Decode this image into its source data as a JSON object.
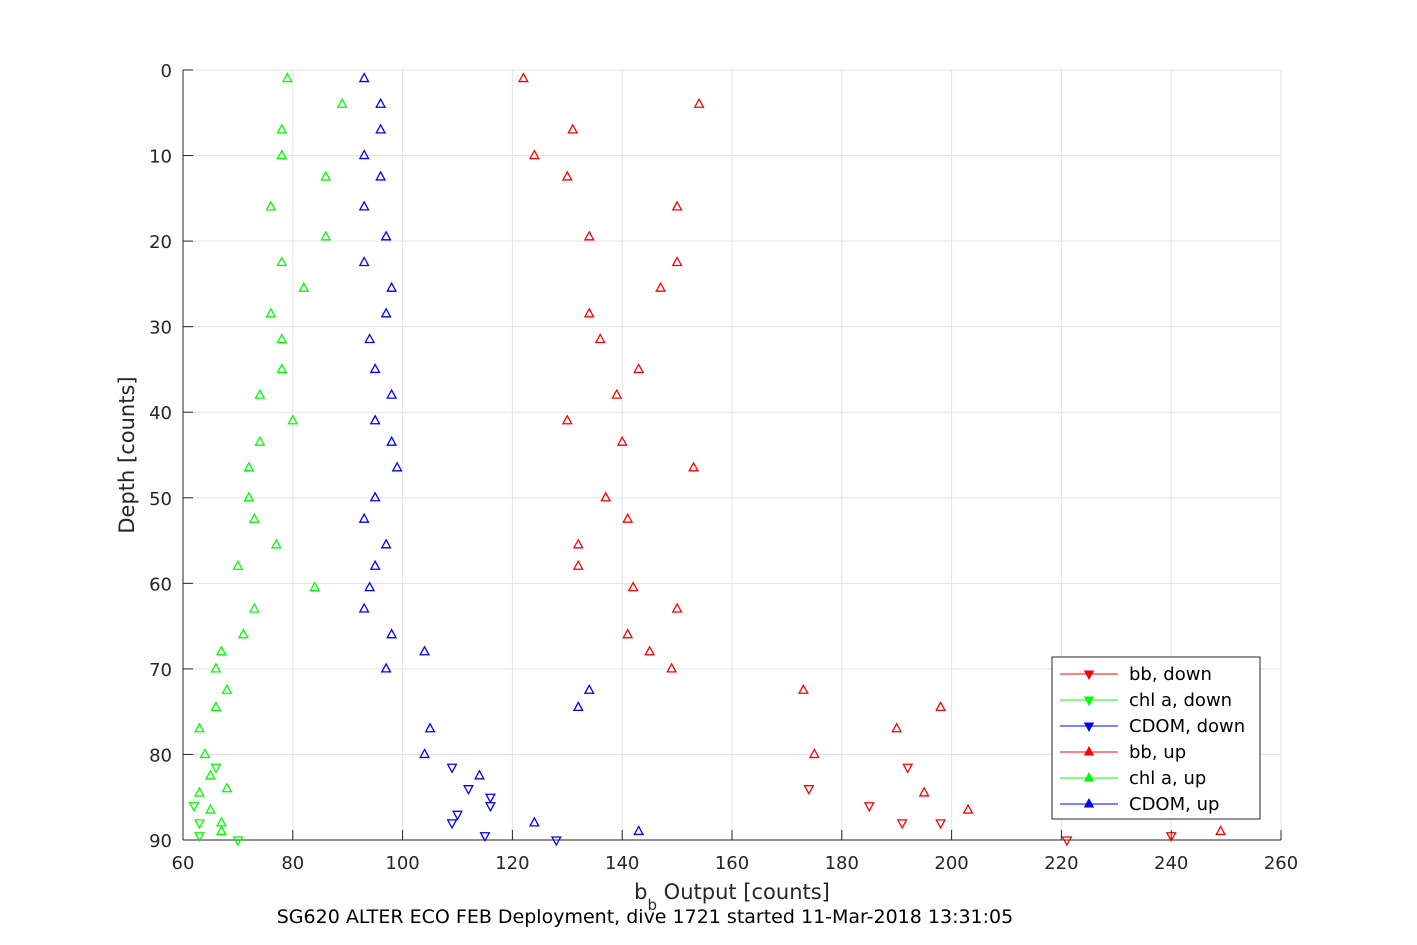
{
  "chart_data": {
    "type": "scatter",
    "title": "",
    "xlabel": "b_b Output [counts]",
    "xlabel_main": "b",
    "xlabel_sub": "b",
    "xlabel_rest": " Output [counts]",
    "ylabel": "Depth [counts]",
    "xlim": [
      60,
      260
    ],
    "ylim": [
      0,
      90
    ],
    "y_reversed": true,
    "grid": true,
    "legend_position": "bottom-right",
    "xticks": [
      60,
      80,
      100,
      120,
      140,
      160,
      180,
      200,
      220,
      240,
      260
    ],
    "yticks": [
      0,
      10,
      20,
      30,
      40,
      50,
      60,
      70,
      80,
      90
    ],
    "series": [
      {
        "name": "bb, down",
        "color": "#ff0000",
        "marker": "triangle-down",
        "points": [
          [
            192,
            81.5
          ],
          [
            174,
            84
          ],
          [
            185,
            86
          ],
          [
            191,
            88
          ],
          [
            198,
            88
          ],
          [
            221,
            90
          ],
          [
            240,
            89.5
          ]
        ]
      },
      {
        "name": "chl a, down",
        "color": "#00ff00",
        "marker": "triangle-down",
        "points": [
          [
            66,
            81.5
          ],
          [
            62,
            86
          ],
          [
            63,
            88
          ],
          [
            63,
            89.5
          ],
          [
            70,
            90
          ]
        ]
      },
      {
        "name": "CDOM, down",
        "color": "#0000ff",
        "marker": "triangle-down",
        "points": [
          [
            109,
            81.5
          ],
          [
            112,
            84
          ],
          [
            116,
            85
          ],
          [
            116,
            86
          ],
          [
            110,
            87
          ],
          [
            109,
            88
          ],
          [
            115,
            89.5
          ],
          [
            128,
            90
          ]
        ]
      },
      {
        "name": "bb, up",
        "color": "#ff0000",
        "marker": "triangle-up",
        "points": [
          [
            122,
            1
          ],
          [
            154,
            4
          ],
          [
            131,
            7
          ],
          [
            124,
            10
          ],
          [
            130,
            12.5
          ],
          [
            150,
            16
          ],
          [
            134,
            19.5
          ],
          [
            150,
            22.5
          ],
          [
            147,
            25.5
          ],
          [
            134,
            28.5
          ],
          [
            136,
            31.5
          ],
          [
            143,
            35
          ],
          [
            139,
            38
          ],
          [
            130,
            41
          ],
          [
            140,
            43.5
          ],
          [
            153,
            46.5
          ],
          [
            137,
            50
          ],
          [
            141,
            52.5
          ],
          [
            132,
            55.5
          ],
          [
            132,
            58
          ],
          [
            142,
            60.5
          ],
          [
            150,
            63
          ],
          [
            141,
            66
          ],
          [
            145,
            68
          ],
          [
            149,
            70
          ],
          [
            173,
            72.5
          ],
          [
            198,
            74.5
          ],
          [
            190,
            77
          ],
          [
            175,
            80
          ],
          [
            195,
            84.5
          ],
          [
            203,
            86.5
          ],
          [
            249,
            89
          ]
        ]
      },
      {
        "name": "chl a, up",
        "color": "#00ff00",
        "marker": "triangle-up",
        "points": [
          [
            79,
            1
          ],
          [
            89,
            4
          ],
          [
            78,
            7
          ],
          [
            78,
            10
          ],
          [
            86,
            12.5
          ],
          [
            76,
            16
          ],
          [
            86,
            19.5
          ],
          [
            78,
            22.5
          ],
          [
            82,
            25.5
          ],
          [
            76,
            28.5
          ],
          [
            78,
            31.5
          ],
          [
            78,
            35
          ],
          [
            74,
            38
          ],
          [
            80,
            41
          ],
          [
            74,
            43.5
          ],
          [
            72,
            46.5
          ],
          [
            72,
            50
          ],
          [
            73,
            52.5
          ],
          [
            77,
            55.5
          ],
          [
            70,
            58
          ],
          [
            84,
            60.5
          ],
          [
            73,
            63
          ],
          [
            71,
            66
          ],
          [
            67,
            68
          ],
          [
            66,
            70
          ],
          [
            68,
            72.5
          ],
          [
            66,
            74.5
          ],
          [
            63,
            77
          ],
          [
            64,
            80
          ],
          [
            65,
            82.5
          ],
          [
            68,
            84
          ],
          [
            63,
            84.5
          ],
          [
            65,
            86.5
          ],
          [
            67,
            88
          ],
          [
            67,
            89
          ]
        ]
      },
      {
        "name": "CDOM, up",
        "color": "#0000ff",
        "marker": "triangle-up",
        "points": [
          [
            93,
            1
          ],
          [
            96,
            4
          ],
          [
            96,
            7
          ],
          [
            93,
            10
          ],
          [
            96,
            12.5
          ],
          [
            93,
            16
          ],
          [
            97,
            19.5
          ],
          [
            93,
            22.5
          ],
          [
            98,
            25.5
          ],
          [
            97,
            28.5
          ],
          [
            94,
            31.5
          ],
          [
            95,
            35
          ],
          [
            98,
            38
          ],
          [
            95,
            41
          ],
          [
            98,
            43.5
          ],
          [
            99,
            46.5
          ],
          [
            95,
            50
          ],
          [
            93,
            52.5
          ],
          [
            97,
            55.5
          ],
          [
            95,
            58
          ],
          [
            94,
            60.5
          ],
          [
            93,
            63
          ],
          [
            98,
            66
          ],
          [
            104,
            68
          ],
          [
            97,
            70
          ],
          [
            134,
            72.5
          ],
          [
            132,
            74.5
          ],
          [
            105,
            77
          ],
          [
            104,
            80
          ],
          [
            114,
            82.5
          ],
          [
            124,
            88
          ],
          [
            143,
            89
          ]
        ]
      }
    ]
  },
  "caption": "SG620 ALTER ECO FEB Deployment, dive 1721 started 11-Mar-2018 13:31:05"
}
